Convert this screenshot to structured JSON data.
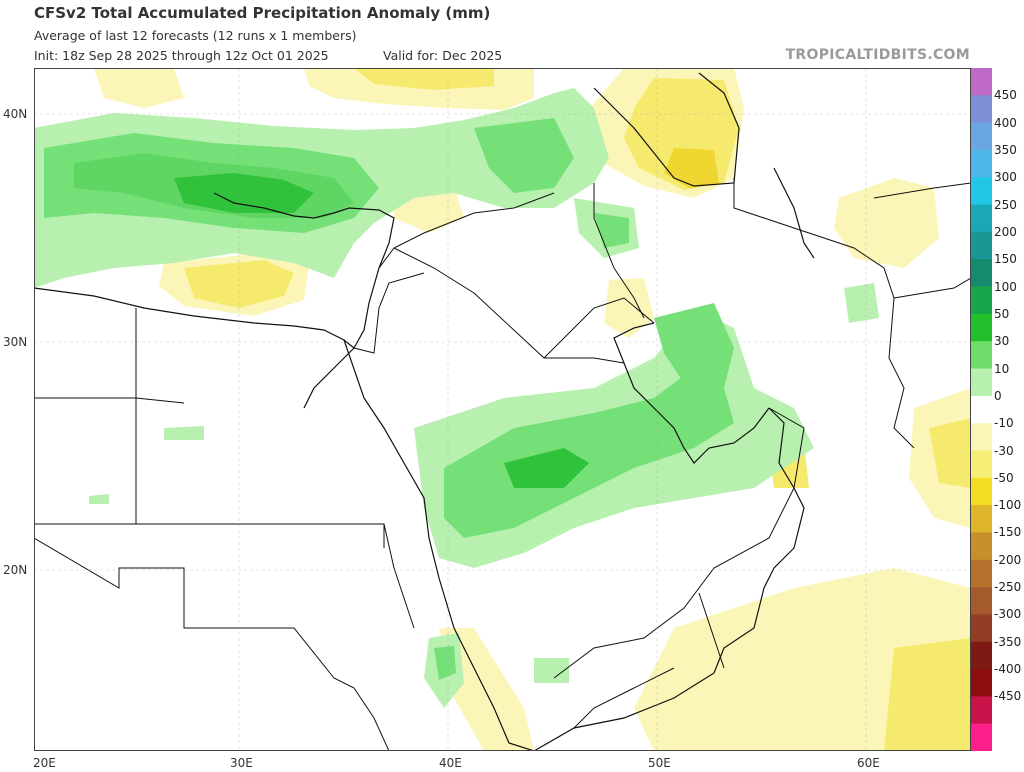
{
  "header": {
    "title": "CFSv2 Total Accumulated Precipitation Anomaly (mm)",
    "subtitle": "Average of last 12 forecasts (12 runs x 1 members)",
    "init": "Init: 18z Sep 28 2025 through 12z Oct 01 2025",
    "valid": "Valid for: Dec 2025",
    "brand": "TROPICALTIDBITS.COM"
  },
  "axes": {
    "lat_labels": [
      "40N",
      "30N",
      "20N"
    ],
    "lon_labels": [
      "20E",
      "30E",
      "40E",
      "50E",
      "60E"
    ]
  },
  "colorbar": {
    "labels": [
      "450",
      "400",
      "350",
      "300",
      "250",
      "200",
      "150",
      "100",
      "50",
      "30",
      "10",
      "0",
      "-10",
      "-30",
      "-50",
      "-100",
      "-150",
      "-200",
      "-250",
      "-300",
      "-350",
      "-400",
      "-450"
    ],
    "colors": [
      "#c06ac8",
      "#7d8fd6",
      "#6aa6e2",
      "#4fb8ea",
      "#23c7e6",
      "#1aa8b7",
      "#1a9694",
      "#168a6c",
      "#18a64a",
      "#22c02a",
      "#6fde6a",
      "#b8f0b0",
      "#ffffff",
      "#fbf6b8",
      "#f7ee78",
      "#f2dd20",
      "#deb42a",
      "#c8902c",
      "#b5712c",
      "#a55a2e",
      "#923e24",
      "#7d1a14",
      "#8b0d0d",
      "#c8124a",
      "#ff1f8a"
    ]
  },
  "map": {
    "anomaly_colors": {
      "green_light": "#b8f0b0",
      "green_mid": "#76e078",
      "green_dark": "#2fc23a",
      "yellow_light": "#fbf6b8",
      "yellow_mid": "#f6ea6e",
      "yellow_dark": "#f0d630"
    }
  }
}
